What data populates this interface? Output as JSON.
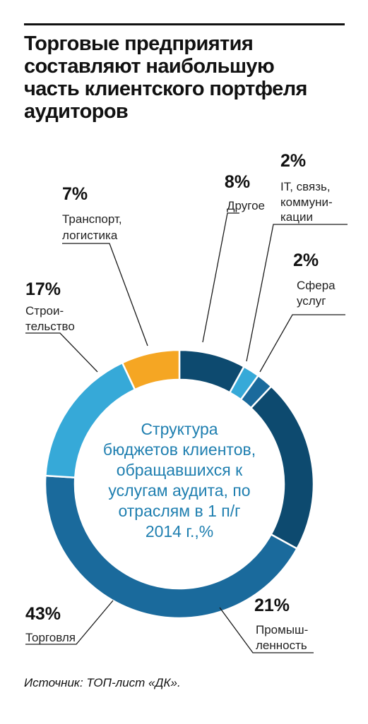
{
  "title_lines": [
    "Торговые предприятия",
    "составляют наибольшую",
    "часть клиентского портфеля",
    "аудиторов"
  ],
  "source": "Источник: ТОП-лист «ДК».",
  "chart_data": {
    "type": "pie",
    "donut": true,
    "center_label_lines": [
      "Структура",
      "бюджетов клиентов,",
      "обращавшихся к",
      "услугам аудита, по",
      "отраслям в 1 п/г",
      "2014 г.,%"
    ],
    "slices": [
      {
        "value": 8,
        "percent_label": "8%",
        "label_lines": [
          "Другое"
        ],
        "color": "#0d4a6f"
      },
      {
        "value": 2,
        "percent_label": "2%",
        "label_lines": [
          "IT, связь,",
          "коммуни-",
          "кации"
        ],
        "color": "#36a9d8"
      },
      {
        "value": 2,
        "percent_label": "2%",
        "label_lines": [
          "Сфера",
          "услуг"
        ],
        "color": "#1a6a9c"
      },
      {
        "value": 21,
        "percent_label": "21%",
        "label_lines": [
          "Промыш-",
          "ленность"
        ],
        "color": "#0d4a6f"
      },
      {
        "value": 43,
        "percent_label": "43%",
        "label_lines": [
          "Торговля"
        ],
        "color": "#1a6a9c"
      },
      {
        "value": 17,
        "percent_label": "17%",
        "label_lines": [
          "Строи-",
          "тельство"
        ],
        "color": "#36a9d8"
      },
      {
        "value": 7,
        "percent_label": "7%",
        "label_lines": [
          "Транспорт,",
          "логистика"
        ],
        "color": "#f5a623"
      }
    ]
  }
}
